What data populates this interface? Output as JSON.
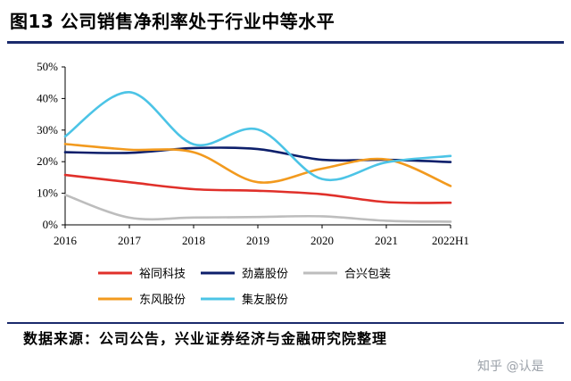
{
  "title": "图13 公司销售净利率处于行业中等水平",
  "source": "数据来源：公司公告，兴业证券经济与金融研究院整理",
  "watermark": "知乎 @认是",
  "chart_data": {
    "type": "line",
    "x": [
      "2016",
      "2017",
      "2018",
      "2019",
      "2020",
      "2021",
      "2022H1"
    ],
    "ylim": [
      0,
      50
    ],
    "yticks": [
      0,
      10,
      20,
      30,
      40,
      50
    ],
    "ytick_labels": [
      "0%",
      "10%",
      "20%",
      "30%",
      "40%",
      "50%"
    ],
    "grid": false,
    "legend_position": "bottom",
    "series": [
      {
        "name": "裕同科技",
        "color": "#e0302a",
        "values": [
          15.8,
          13.5,
          11.3,
          10.8,
          9.7,
          7.2,
          7.0
        ]
      },
      {
        "name": "劲嘉股份",
        "color": "#0d1f6b",
        "values": [
          23.0,
          22.8,
          24.3,
          24.0,
          20.6,
          20.6,
          19.9
        ]
      },
      {
        "name": "合兴包装",
        "color": "#bdbdbd",
        "values": [
          9.5,
          2.3,
          2.3,
          2.5,
          2.7,
          1.3,
          1.0
        ]
      },
      {
        "name": "东风股份",
        "color": "#f29a1e",
        "values": [
          25.6,
          23.8,
          23.0,
          13.5,
          17.8,
          20.7,
          12.3
        ]
      },
      {
        "name": "集友股份",
        "color": "#4cc4e6",
        "values": [
          28.0,
          42.0,
          25.5,
          30.2,
          14.5,
          19.8,
          21.8
        ]
      }
    ]
  }
}
